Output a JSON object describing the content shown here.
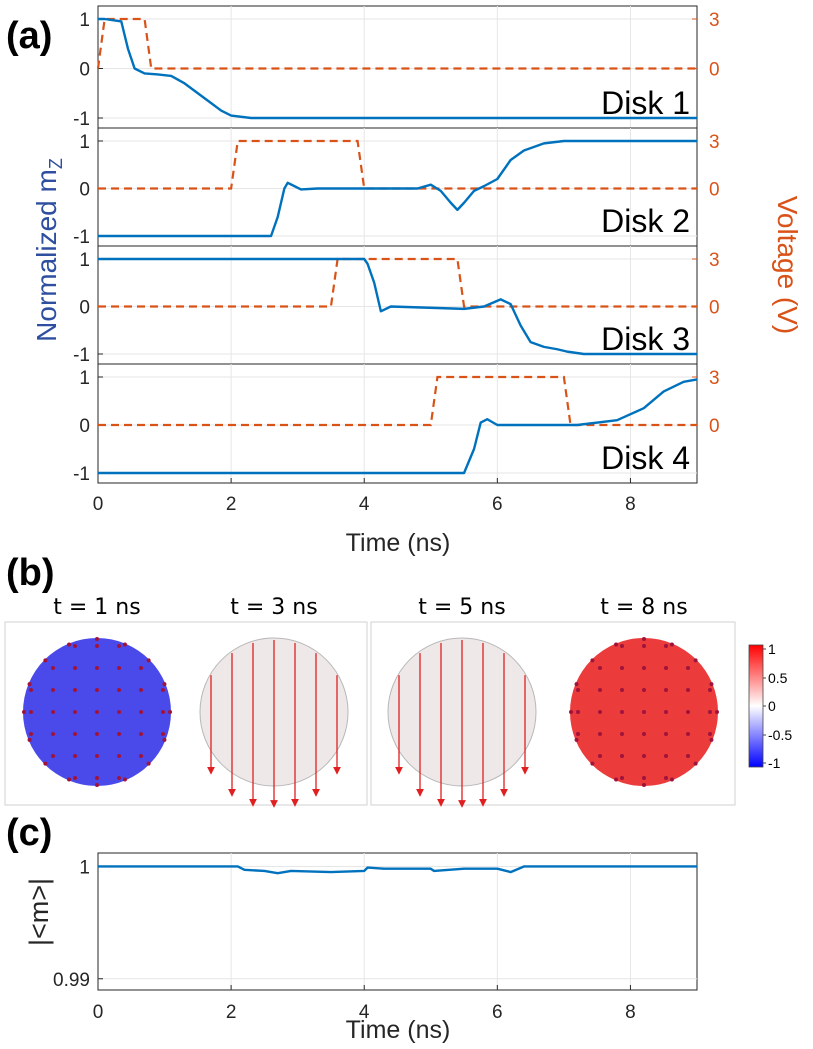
{
  "panel_a": {
    "letter": "(a)",
    "ylabel_left": "Normalized m",
    "ylabel_left_sub": "Z",
    "ylabel_right": "Voltage (V)",
    "xlabel": "Time (ns)"
  },
  "panel_b": {
    "letter": "(b)",
    "snapshots": [
      {
        "title": "t = 1 ns",
        "mz": -1
      },
      {
        "title": "t = 3 ns",
        "mz": 0
      },
      {
        "title": "t = 5 ns",
        "mz": 0
      },
      {
        "title": "t = 8 ns",
        "mz": 1
      }
    ],
    "colorbar_ticks": [
      "1",
      "0.5",
      "0",
      "-0.5",
      "-1"
    ],
    "colorbar_colors": {
      "high": "#ff0000",
      "mid": "#ffffff",
      "low": "#0000ff"
    }
  },
  "panel_c": {
    "letter": "(c)",
    "ylabel": "|<m>|",
    "xlabel": "Time (ns)"
  },
  "colors": {
    "mz_line": "#0072bd",
    "voltage_line": "#d95319",
    "right_axis": "#d95319",
    "left_label": "#2e4ea0"
  },
  "chart_data": [
    {
      "type": "line",
      "title": "Disk 1",
      "x_range": [
        0,
        9
      ],
      "x_ticks": [
        "0",
        "2",
        "4",
        "6",
        "8"
      ],
      "y_left_ticks": [
        "1",
        "0",
        "-1"
      ],
      "y_right_ticks": [
        "3",
        "0"
      ],
      "series": [
        {
          "axis": "left",
          "x": [
            0,
            0.1,
            0.35,
            0.45,
            0.55,
            0.7,
            0.9,
            1.1,
            1.3,
            1.5,
            1.7,
            1.85,
            2.0,
            2.3,
            3,
            9
          ],
          "y": [
            1,
            1,
            0.95,
            0.4,
            0.0,
            -0.1,
            -0.12,
            -0.15,
            -0.3,
            -0.5,
            -0.7,
            -0.85,
            -0.95,
            -1,
            -1,
            -1
          ]
        },
        {
          "axis": "right",
          "x": [
            0,
            0.1,
            0.7,
            0.8,
            9
          ],
          "y": [
            0,
            3,
            3,
            0,
            0
          ]
        }
      ]
    },
    {
      "type": "line",
      "title": "Disk 2",
      "x_range": [
        0,
        9
      ],
      "x_ticks": [
        "0",
        "2",
        "4",
        "6",
        "8"
      ],
      "y_left_ticks": [
        "1",
        "0",
        "-1"
      ],
      "y_right_ticks": [
        "3",
        "0"
      ],
      "series": [
        {
          "axis": "left",
          "x": [
            0,
            2.6,
            2.7,
            2.8,
            2.85,
            2.95,
            3.05,
            3.3,
            4.5,
            4.8,
            5.0,
            5.15,
            5.3,
            5.4,
            5.5,
            5.65,
            5.8,
            6.0,
            6.2,
            6.4,
            6.7,
            7,
            9
          ],
          "y": [
            -1,
            -1,
            -0.6,
            0.0,
            0.12,
            0.05,
            -0.02,
            0.0,
            0.0,
            0.0,
            0.08,
            -0.05,
            -0.3,
            -0.45,
            -0.3,
            -0.05,
            0.05,
            0.2,
            0.6,
            0.8,
            0.95,
            1,
            1
          ]
        },
        {
          "axis": "right",
          "x": [
            0,
            2.0,
            2.1,
            3.9,
            4.0,
            9
          ],
          "y": [
            0,
            0,
            3,
            3,
            0,
            0
          ]
        }
      ]
    },
    {
      "type": "line",
      "title": "Disk 3",
      "x_range": [
        0,
        9
      ],
      "x_ticks": [
        "0",
        "2",
        "4",
        "6",
        "8"
      ],
      "y_left_ticks": [
        "1",
        "0",
        "-1"
      ],
      "y_right_ticks": [
        "3",
        "0"
      ],
      "series": [
        {
          "axis": "left",
          "x": [
            0,
            4.0,
            4.05,
            4.15,
            4.25,
            4.4,
            5.5,
            5.8,
            6.05,
            6.2,
            6.35,
            6.5,
            6.7,
            6.9,
            7.05,
            7.3,
            9
          ],
          "y": [
            1,
            1,
            0.9,
            0.5,
            -0.1,
            0.0,
            -0.05,
            0.0,
            0.15,
            0.05,
            -0.4,
            -0.75,
            -0.85,
            -0.9,
            -0.95,
            -1,
            -1
          ]
        },
        {
          "axis": "right",
          "x": [
            0,
            3.5,
            3.6,
            5.4,
            5.5,
            9
          ],
          "y": [
            0,
            0,
            3,
            3,
            0,
            0
          ]
        }
      ]
    },
    {
      "type": "line",
      "title": "Disk 4",
      "x_range": [
        0,
        9
      ],
      "x_ticks": [
        "0",
        "2",
        "4",
        "6",
        "8"
      ],
      "y_left_ticks": [
        "1",
        "0",
        "-1"
      ],
      "y_right_ticks": [
        "3",
        "0"
      ],
      "series": [
        {
          "axis": "left",
          "x": [
            0,
            5.5,
            5.65,
            5.75,
            5.85,
            6.0,
            7.2,
            7.8,
            8.2,
            8.5,
            8.8,
            9
          ],
          "y": [
            -1,
            -1,
            -0.5,
            0.05,
            0.12,
            0.0,
            0.0,
            0.1,
            0.35,
            0.7,
            0.9,
            0.95
          ]
        },
        {
          "axis": "right",
          "x": [
            0,
            5.0,
            5.1,
            7.0,
            7.1,
            9
          ],
          "y": [
            0,
            0,
            3,
            3,
            0,
            0
          ]
        }
      ]
    },
    {
      "type": "line",
      "title": "",
      "xlabel": "Time (ns)",
      "ylabel": "|<m>|",
      "x_range": [
        0,
        9
      ],
      "ylim": [
        0.989,
        1.0012
      ],
      "x_ticks": [
        "0",
        "2",
        "4",
        "6",
        "8"
      ],
      "y_ticks": [
        "1",
        "0.99"
      ],
      "series": [
        {
          "axis": "left",
          "x": [
            0,
            2.1,
            2.2,
            2.5,
            2.7,
            2.9,
            3.5,
            4.0,
            4.05,
            4.3,
            5.0,
            5.05,
            5.5,
            6.0,
            6.2,
            6.4,
            9
          ],
          "y": [
            1,
            1,
            0.9997,
            0.9996,
            0.9994,
            0.9996,
            0.9995,
            0.9996,
            0.9999,
            0.9998,
            0.9998,
            0.9996,
            0.9998,
            0.9998,
            0.9995,
            1,
            1
          ]
        }
      ]
    }
  ]
}
